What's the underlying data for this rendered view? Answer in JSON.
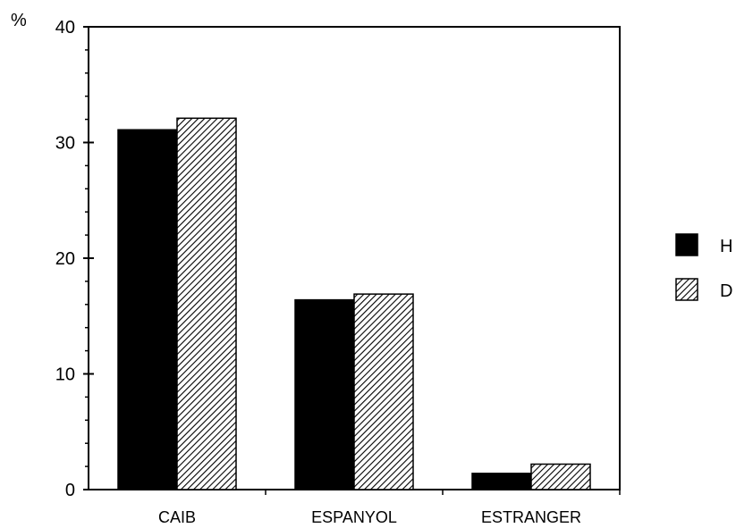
{
  "chart_data": {
    "type": "bar",
    "unit_label": "%",
    "categories": [
      "CAIB",
      "ESPANYOL",
      "ESTRANGER"
    ],
    "series": [
      {
        "name": "H",
        "values": [
          31.1,
          16.4,
          1.4
        ],
        "fill": "solid",
        "color": "#000000"
      },
      {
        "name": "D",
        "values": [
          32.1,
          16.9,
          2.2
        ],
        "fill": "hatched",
        "color": "#000000"
      }
    ],
    "ylim": [
      0,
      40
    ],
    "yticks": [
      "0",
      "10",
      "20",
      "30",
      "40"
    ],
    "grid": false,
    "legend_position": "right"
  }
}
